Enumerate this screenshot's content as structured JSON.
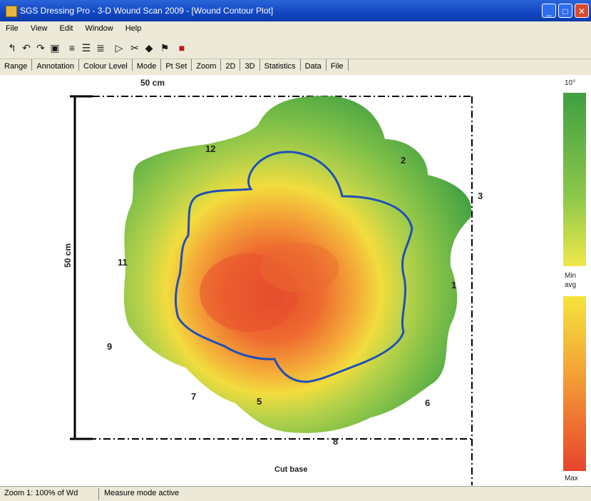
{
  "window": {
    "title": "SGS Dressing Pro - 3-D Wound Scan 2009 - [Wound Contour Plot]",
    "minimize_label": "_",
    "maximize_label": "□",
    "close_label": "✕"
  },
  "menu": [
    "File",
    "View",
    "Edit",
    "Window",
    "Help"
  ],
  "tabs": [
    "Range",
    "Annotation",
    "Colour Level",
    "Mode",
    "Pt Set",
    "Zoom",
    "2D",
    "3D",
    "Statistics",
    "Data",
    "File"
  ],
  "plot": {
    "top_scale_label": "50 cm",
    "left_scale_label": "50 cm",
    "bottom_label": "Cut base",
    "clock_labels": {
      "twelve": "12",
      "two": "2",
      "three": "3",
      "eleven": "11",
      "one": "1",
      "nine": "9",
      "seven": "7",
      "five": "5",
      "six": "6",
      "eight": "8"
    },
    "legend": {
      "top": "10°",
      "mid1": "Min",
      "mid2": "avg",
      "bottom": "Max"
    },
    "colors": {
      "green": "#3fa040",
      "light_green": "#8cc84a",
      "yellow": "#f4e040",
      "orange": "#f39a38",
      "red": "#e85030",
      "contour": "#2050b8"
    }
  },
  "status": {
    "left": "Zoom 1: 100% of Wd",
    "right": "Measure mode active"
  }
}
